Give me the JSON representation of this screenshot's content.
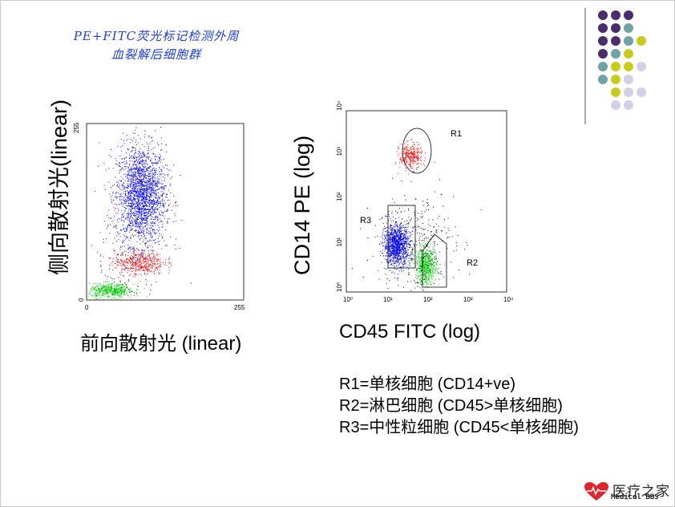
{
  "title": {
    "line1": "PE+FITC荧光标记检测外周",
    "line2": "血裂解后细胞群"
  },
  "left_plot": {
    "ylabel": "侧向散射光(linear)",
    "xlabel": "前向散射光 (linear)",
    "x_ticks": [
      "0",
      "255"
    ],
    "y_ticks": [
      "0",
      "255"
    ]
  },
  "right_plot": {
    "ylabel": "CD14 PE (log)",
    "xlabel": "CD45 FITC (log)",
    "x_ticks": [
      "10⁰",
      "10¹",
      "10²",
      "10³",
      "10⁴"
    ],
    "y_ticks": [
      "10⁰",
      "10¹",
      "10²",
      "10³",
      "10⁴"
    ],
    "regions": [
      "R1",
      "R2",
      "R3"
    ]
  },
  "legend": [
    "R1=单核细胞 (CD14+ve)",
    "R2=淋巴细胞 (CD45>单核细胞)",
    "R3=中性粒细胞 (CD45<单核细胞)"
  ],
  "chart_data": [
    {
      "type": "scatter",
      "xlabel": "前向散射光 (linear)",
      "ylabel": "侧向散射光(linear)",
      "xlim": [
        0,
        255
      ],
      "ylim": [
        0,
        255
      ],
      "x_ticks": [
        "0",
        "255"
      ],
      "y_ticks": [
        "0",
        "255"
      ],
      "grid": false,
      "series": [
        {
          "color": "#0000ff",
          "center": [
            88,
            152
          ],
          "spread": [
            20,
            36
          ],
          "count": 2200
        },
        {
          "color": "#ff0000",
          "center": [
            85,
            55
          ],
          "spread": [
            20,
            9
          ],
          "count": 450
        },
        {
          "color": "#00cc00",
          "center": [
            40,
            14
          ],
          "spread": [
            18,
            5
          ],
          "count": 500
        },
        {
          "color": "#000000",
          "center": [
            60,
            55
          ],
          "spread": [
            40,
            40
          ],
          "count": 120
        }
      ]
    },
    {
      "type": "scatter",
      "xlabel": "CD45 FITC (log)",
      "ylabel": "CD14 PE (log)",
      "xlim": [
        0,
        4
      ],
      "ylim": [
        0,
        4
      ],
      "x_scale": "log",
      "y_scale": "log",
      "x_ticks": [
        "10⁰",
        "10¹",
        "10²",
        "10³",
        "10⁴"
      ],
      "y_ticks": [
        "10⁰",
        "10¹",
        "10²",
        "10³",
        "10⁴"
      ],
      "grid": false,
      "series": [
        {
          "color": "#ff0000",
          "region": "R1",
          "center": [
            1.6,
            3.0
          ],
          "spread": [
            0.14,
            0.14
          ],
          "count": 300
        },
        {
          "color": "#0000ff",
          "region": "R3",
          "center": [
            1.25,
            1.05
          ],
          "spread": [
            0.16,
            0.22
          ],
          "count": 1100
        },
        {
          "color": "#00cc00",
          "region": "R2",
          "center": [
            1.98,
            0.58
          ],
          "spread": [
            0.13,
            0.2
          ],
          "count": 600
        },
        {
          "color": "#000000",
          "center": [
            1.7,
            1.1
          ],
          "spread": [
            0.5,
            0.6
          ],
          "count": 350
        }
      ]
    }
  ],
  "deco_dots": {
    "colors": [
      "#4b2d6e",
      "#6fa3a5",
      "#c9cc1f",
      "#d3d1e8"
    ]
  },
  "logo": {
    "cn": "医疗之家",
    "en": "Medical BBS"
  }
}
